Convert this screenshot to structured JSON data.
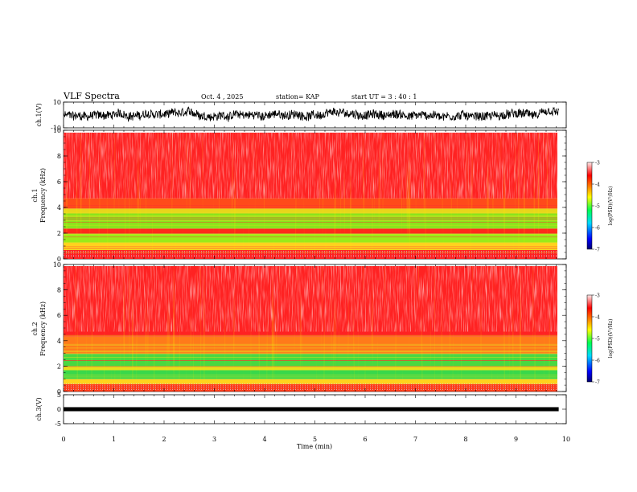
{
  "header": {
    "title": "VLF Spectra",
    "date": "Oct. 4 , 2025",
    "station": "station= KAP",
    "start": "start UT =  3 : 40 : 1"
  },
  "chart_data": [
    {
      "id": "ch1-waveform",
      "type": "line",
      "ylabel": "ch.1(V)",
      "ylim": [
        -10,
        10
      ],
      "yticks": [
        "10",
        "-10"
      ],
      "xlim": [
        0,
        10
      ],
      "series": [
        {
          "name": "ch.1",
          "approx_range": [
            -6,
            6
          ],
          "last_time_min": 9.85
        }
      ]
    },
    {
      "id": "ch1-spectrogram",
      "type": "heatmap",
      "ylabel": "ch.1\nFrequency (kHz)",
      "ylabel_line1": "ch.1",
      "ylabel_line2": "Frequency (kHz)",
      "ylim": [
        0,
        10
      ],
      "yticks": [
        "0",
        "2",
        "4",
        "6",
        "8",
        "10"
      ],
      "xlim": [
        0,
        10
      ],
      "bands": [
        {
          "from": 0.0,
          "to": 0.7,
          "color": "#ff2020"
        },
        {
          "from": 0.7,
          "to": 1.3,
          "color": "#ffd21e"
        },
        {
          "from": 1.3,
          "to": 2.0,
          "color": "#9aea1a"
        },
        {
          "from": 2.0,
          "to": 2.4,
          "color": "#ff2a1a"
        },
        {
          "from": 2.4,
          "to": 3.6,
          "color": "#8ae41c"
        },
        {
          "from": 3.6,
          "to": 4.0,
          "color": "#e8d41a"
        },
        {
          "from": 4.0,
          "to": 4.8,
          "color": "#ff4a1a"
        },
        {
          "from": 4.8,
          "to": 10.0,
          "color": "#ff2222"
        }
      ],
      "colorbar": {
        "label": "log(PSD)(V²/Hz)",
        "ticks": [
          "-3",
          "-4",
          "-5",
          "-6",
          "-7"
        ],
        "range": [
          -7,
          -3
        ]
      }
    },
    {
      "id": "ch2-spectrogram",
      "type": "heatmap",
      "ylabel": "ch.2\nFrequency (kHz)",
      "ylabel_line1": "ch.2",
      "ylabel_line2": "Frequency (kHz)",
      "ylim": [
        0,
        10
      ],
      "yticks": [
        "0",
        "2",
        "4",
        "6",
        "8",
        "10"
      ],
      "xlim": [
        0,
        10
      ],
      "bands": [
        {
          "from": 0.0,
          "to": 0.6,
          "color": "#ff3a1a"
        },
        {
          "from": 0.6,
          "to": 1.0,
          "color": "#ffd21e"
        },
        {
          "from": 1.0,
          "to": 1.7,
          "color": "#3ad84a"
        },
        {
          "from": 1.7,
          "to": 2.0,
          "color": "#e8e01a"
        },
        {
          "from": 2.0,
          "to": 3.0,
          "color": "#4ad840"
        },
        {
          "from": 3.0,
          "to": 4.4,
          "color": "#ff7a1a"
        },
        {
          "from": 4.4,
          "to": 10.0,
          "color": "#ff2222"
        }
      ],
      "colorbar": {
        "label": "log(PSD)(V²/Hz)",
        "ticks": [
          "-3",
          "-4",
          "-5",
          "-6",
          "-7"
        ],
        "range": [
          -7,
          -3
        ]
      }
    },
    {
      "id": "ch3-waveform",
      "type": "line",
      "ylabel": "ch.3(V)",
      "ylim": [
        -5,
        5
      ],
      "yticks": [
        "5",
        "0",
        "-5"
      ],
      "xlim": [
        0,
        10
      ],
      "series": [
        {
          "name": "ch.3",
          "approx_range": [
            -0.7,
            0.7
          ],
          "last_time_min": 9.85
        }
      ]
    }
  ],
  "xaxis": {
    "label": "Time (min)",
    "ticks": [
      "0",
      "1",
      "2",
      "3",
      "4",
      "5",
      "6",
      "7",
      "8",
      "9",
      "10"
    ]
  },
  "colors": {
    "colormap": [
      "#000080",
      "#0000ff",
      "#00d8ff",
      "#00ff60",
      "#ffff00",
      "#ff8000",
      "#ff0000",
      "#ffe8e8"
    ]
  }
}
